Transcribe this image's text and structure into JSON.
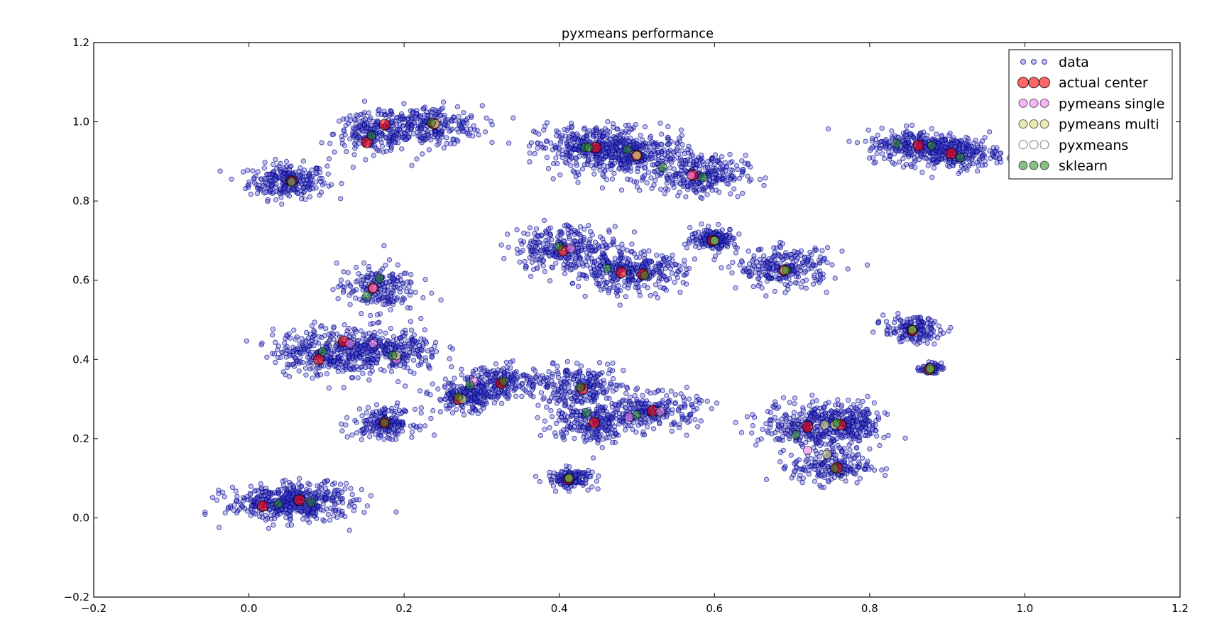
{
  "chart_data": {
    "type": "scatter",
    "title": "pyxmeans performance",
    "xlabel": "",
    "ylabel": "",
    "xlim": [
      -0.2,
      1.2
    ],
    "ylim": [
      -0.2,
      1.2
    ],
    "xticks": [
      "−0.2",
      "0.0",
      "0.2",
      "0.4",
      "0.6",
      "0.8",
      "1.0",
      "1.2"
    ],
    "yticks": [
      "−0.2",
      "0.0",
      "0.2",
      "0.4",
      "0.6",
      "0.8",
      "1.0",
      "1.2"
    ],
    "xtick_values": [
      -0.2,
      0.0,
      0.2,
      0.4,
      0.6,
      0.8,
      1.0,
      1.2
    ],
    "ytick_values": [
      -0.2,
      0.0,
      0.2,
      0.4,
      0.6,
      0.8,
      1.0,
      1.2
    ],
    "grid": false,
    "legend_position": "top-right",
    "data_clusters": [
      {
        "cx": 0.05,
        "cy": 0.85,
        "sx": 0.025,
        "sy": 0.022,
        "n": 260
      },
      {
        "cx": 0.16,
        "cy": 0.97,
        "sx": 0.025,
        "sy": 0.025,
        "n": 200
      },
      {
        "cx": 0.23,
        "cy": 0.99,
        "sx": 0.035,
        "sy": 0.025,
        "n": 280
      },
      {
        "cx": 0.44,
        "cy": 0.935,
        "sx": 0.035,
        "sy": 0.028,
        "n": 320
      },
      {
        "cx": 0.5,
        "cy": 0.915,
        "sx": 0.035,
        "sy": 0.028,
        "n": 320
      },
      {
        "cx": 0.58,
        "cy": 0.865,
        "sx": 0.03,
        "sy": 0.025,
        "n": 260
      },
      {
        "cx": 0.865,
        "cy": 0.94,
        "sx": 0.035,
        "sy": 0.02,
        "n": 280
      },
      {
        "cx": 0.91,
        "cy": 0.92,
        "sx": 0.028,
        "sy": 0.02,
        "n": 220
      },
      {
        "cx": 0.165,
        "cy": 0.58,
        "sx": 0.025,
        "sy": 0.03,
        "n": 200
      },
      {
        "cx": 0.1,
        "cy": 0.42,
        "sx": 0.035,
        "sy": 0.03,
        "n": 320
      },
      {
        "cx": 0.18,
        "cy": 0.42,
        "sx": 0.035,
        "sy": 0.028,
        "n": 300
      },
      {
        "cx": 0.175,
        "cy": 0.24,
        "sx": 0.02,
        "sy": 0.018,
        "n": 200
      },
      {
        "cx": 0.04,
        "cy": 0.035,
        "sx": 0.035,
        "sy": 0.022,
        "n": 320
      },
      {
        "cx": 0.08,
        "cy": 0.045,
        "sx": 0.03,
        "sy": 0.022,
        "n": 200
      },
      {
        "cx": 0.41,
        "cy": 0.68,
        "sx": 0.035,
        "sy": 0.03,
        "n": 300
      },
      {
        "cx": 0.49,
        "cy": 0.62,
        "sx": 0.035,
        "sy": 0.025,
        "n": 320
      },
      {
        "cx": 0.6,
        "cy": 0.705,
        "sx": 0.015,
        "sy": 0.013,
        "n": 180
      },
      {
        "cx": 0.69,
        "cy": 0.63,
        "sx": 0.03,
        "sy": 0.025,
        "n": 260
      },
      {
        "cx": 0.28,
        "cy": 0.305,
        "sx": 0.02,
        "sy": 0.02,
        "n": 200
      },
      {
        "cx": 0.33,
        "cy": 0.345,
        "sx": 0.025,
        "sy": 0.02,
        "n": 200
      },
      {
        "cx": 0.425,
        "cy": 0.33,
        "sx": 0.03,
        "sy": 0.025,
        "n": 240
      },
      {
        "cx": 0.44,
        "cy": 0.24,
        "sx": 0.025,
        "sy": 0.025,
        "n": 220
      },
      {
        "cx": 0.52,
        "cy": 0.27,
        "sx": 0.03,
        "sy": 0.022,
        "n": 240
      },
      {
        "cx": 0.415,
        "cy": 0.1,
        "sx": 0.015,
        "sy": 0.012,
        "n": 150
      },
      {
        "cx": 0.855,
        "cy": 0.475,
        "sx": 0.018,
        "sy": 0.016,
        "n": 170
      },
      {
        "cx": 0.878,
        "cy": 0.378,
        "sx": 0.007,
        "sy": 0.006,
        "n": 70
      },
      {
        "cx": 0.73,
        "cy": 0.235,
        "sx": 0.035,
        "sy": 0.03,
        "n": 300
      },
      {
        "cx": 0.77,
        "cy": 0.235,
        "sx": 0.025,
        "sy": 0.025,
        "n": 200
      },
      {
        "cx": 0.75,
        "cy": 0.13,
        "sx": 0.025,
        "sy": 0.022,
        "n": 200
      }
    ],
    "series": [
      {
        "name": "actual center",
        "color": "#ff0000",
        "size": 7.5,
        "points": [
          [
            0.055,
            0.85
          ],
          [
            0.152,
            0.948
          ],
          [
            0.175,
            0.993
          ],
          [
            0.238,
            0.995
          ],
          [
            0.447,
            0.935
          ],
          [
            0.5,
            0.915
          ],
          [
            0.572,
            0.865
          ],
          [
            0.863,
            0.94
          ],
          [
            0.905,
            0.92
          ],
          [
            0.16,
            0.58
          ],
          [
            0.09,
            0.4
          ],
          [
            0.122,
            0.445
          ],
          [
            0.175,
            0.24
          ],
          [
            0.018,
            0.03
          ],
          [
            0.065,
            0.045
          ],
          [
            0.405,
            0.675
          ],
          [
            0.48,
            0.62
          ],
          [
            0.508,
            0.615
          ],
          [
            0.598,
            0.7
          ],
          [
            0.69,
            0.625
          ],
          [
            0.27,
            0.3
          ],
          [
            0.325,
            0.34
          ],
          [
            0.43,
            0.325
          ],
          [
            0.445,
            0.24
          ],
          [
            0.52,
            0.27
          ],
          [
            0.412,
            0.098
          ],
          [
            0.855,
            0.473
          ],
          [
            0.877,
            0.375
          ],
          [
            0.72,
            0.23
          ],
          [
            0.763,
            0.235
          ],
          [
            0.758,
            0.126
          ]
        ]
      },
      {
        "name": "pymeans single",
        "color": "#ee82ee",
        "size": 6,
        "points": [
          [
            0.16,
            0.58
          ],
          [
            0.13,
            0.44
          ],
          [
            0.16,
            0.44
          ],
          [
            0.19,
            0.4
          ],
          [
            0.29,
            0.345
          ],
          [
            0.49,
            0.255
          ],
          [
            0.53,
            0.268
          ],
          [
            0.72,
            0.17
          ],
          [
            0.415,
            0.68
          ],
          [
            0.57,
            0.865
          ],
          [
            0.055,
            0.85
          ],
          [
            0.6,
            0.7
          ]
        ]
      },
      {
        "name": "pymeans multi",
        "color": "#dddd88",
        "size": 6,
        "points": [
          [
            0.19,
            0.41
          ],
          [
            0.745,
            0.16
          ],
          [
            0.275,
            0.3
          ],
          [
            0.413,
            0.1
          ],
          [
            0.855,
            0.475
          ],
          [
            0.878,
            0.378
          ],
          [
            0.6,
            0.7
          ],
          [
            0.69,
            0.625
          ],
          [
            0.755,
            0.235
          ],
          [
            0.742,
            0.235
          ],
          [
            0.24,
            0.995
          ],
          [
            0.5,
            0.915
          ]
        ]
      },
      {
        "name": "pyxmeans",
        "color": "none",
        "size": 6,
        "points": [
          [
            0.108,
            0.445
          ],
          [
            0.083,
            0.387
          ],
          [
            0.08,
            0.04
          ],
          [
            0.49,
            0.62
          ],
          [
            0.43,
            0.33
          ],
          [
            0.525,
            0.265
          ],
          [
            0.71,
            0.245
          ],
          [
            0.765,
            0.105
          ]
        ]
      },
      {
        "name": "sklearn",
        "color": "#228b22",
        "size": 6,
        "points": [
          [
            0.055,
            0.848
          ],
          [
            0.158,
            0.965
          ],
          [
            0.235,
            0.998
          ],
          [
            0.433,
            0.935
          ],
          [
            0.438,
            0.935
          ],
          [
            0.488,
            0.93
          ],
          [
            0.533,
            0.885
          ],
          [
            0.585,
            0.86
          ],
          [
            0.835,
            0.945
          ],
          [
            0.88,
            0.94
          ],
          [
            0.917,
            0.91
          ],
          [
            0.168,
            0.605
          ],
          [
            0.152,
            0.56
          ],
          [
            0.095,
            0.42
          ],
          [
            0.185,
            0.41
          ],
          [
            0.175,
            0.24
          ],
          [
            0.038,
            0.035
          ],
          [
            0.08,
            0.04
          ],
          [
            0.4,
            0.685
          ],
          [
            0.462,
            0.63
          ],
          [
            0.51,
            0.612
          ],
          [
            0.6,
            0.7
          ],
          [
            0.693,
            0.625
          ],
          [
            0.285,
            0.335
          ],
          [
            0.27,
            0.305
          ],
          [
            0.328,
            0.345
          ],
          [
            0.435,
            0.265
          ],
          [
            0.427,
            0.33
          ],
          [
            0.5,
            0.26
          ],
          [
            0.412,
            0.1
          ],
          [
            0.855,
            0.475
          ],
          [
            0.878,
            0.375
          ],
          [
            0.705,
            0.21
          ],
          [
            0.758,
            0.24
          ],
          [
            0.755,
            0.125
          ]
        ]
      }
    ],
    "legend": [
      {
        "label": "data",
        "kind": "data"
      },
      {
        "label": "actual center",
        "kind": "actual"
      },
      {
        "label": "pymeans single",
        "kind": "single"
      },
      {
        "label": "pymeans multi",
        "kind": "multi"
      },
      {
        "label": "pyxmeans",
        "kind": "pyx"
      },
      {
        "label": "sklearn",
        "kind": "sklearn"
      }
    ],
    "colors": {
      "data_fill": "#4b4bd6",
      "data_edge": "#000080",
      "actual": "#ff0000",
      "single": "#ee82ee",
      "multi": "#dddd88",
      "sklearn": "#228b22"
    }
  }
}
